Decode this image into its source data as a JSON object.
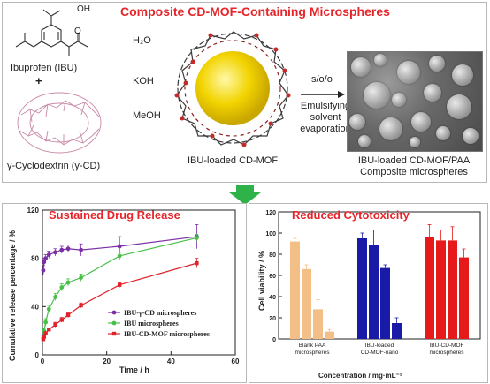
{
  "top": {
    "title": "Composite CD-MOF-Containing Microspheres",
    "ibuprofen_label": "Ibuprofen (IBU)",
    "plus": "+",
    "cyclodextrin_label": "γ-Cyclodextrin (γ-CD)",
    "cooh": "OH",
    "o_atom": "O",
    "reagents": [
      "H₂O",
      "KOH",
      "MeOH"
    ],
    "mof_label": "IBU-loaded CD-MOF",
    "process_top": "s/o/o",
    "process_lines": [
      "Emulsifying",
      "solvent",
      "evaporation"
    ],
    "product_lines": [
      "IBU-loaded CD-MOF/PAA",
      "Composite microspheres"
    ]
  },
  "release": {
    "title": "Sustained Drug Release",
    "ylabel": "Cumulative release percentage / %",
    "xlabel": "Time / h"
  },
  "cytotox": {
    "title": "Reduced Cytotoxicity",
    "ylabel": "Cell viability / %",
    "xlabel": "Concentration / mg·mL⁻¹"
  },
  "chart_data": [
    {
      "type": "line",
      "title": "Sustained Drug Release",
      "xlabel": "Time / h",
      "ylabel": "Cumulative release percentage / %",
      "xlim": [
        0,
        60
      ],
      "ylim": [
        0,
        120
      ],
      "xticks": [
        0,
        20,
        40,
        60
      ],
      "yticks": [
        0,
        40,
        80,
        120
      ],
      "legend_position": "lower-right",
      "series": [
        {
          "name": "IBU-γ-CD microspheres",
          "color": "#7b2fa6",
          "marker": "circle",
          "x": [
            0.25,
            0.5,
            1,
            2,
            4,
            6,
            8,
            12,
            24,
            48
          ],
          "y": [
            70,
            77,
            80,
            83,
            85,
            87,
            88,
            87,
            90,
            98
          ],
          "err": [
            4,
            3,
            3,
            3,
            3,
            3,
            3,
            5,
            8,
            10
          ]
        },
        {
          "name": "IBU microspheres",
          "color": "#48c048",
          "marker": "circle",
          "x": [
            0.25,
            0.5,
            1,
            2,
            4,
            6,
            8,
            12,
            24,
            48
          ],
          "y": [
            14,
            20,
            27,
            38,
            48,
            56,
            60,
            64,
            82,
            97
          ],
          "err": [
            2,
            2,
            3,
            3,
            3,
            3,
            3,
            3,
            3,
            3
          ]
        },
        {
          "name": "IBU-CD-MOF microspheres",
          "color": "#e0222a",
          "marker": "square",
          "x": [
            0.25,
            0.5,
            1,
            2,
            4,
            6,
            8,
            12,
            24,
            48
          ],
          "y": [
            13,
            15,
            18,
            21,
            25,
            29,
            33,
            41,
            58,
            76
          ],
          "err": [
            1,
            1,
            1,
            1,
            2,
            2,
            2,
            2,
            2,
            4
          ]
        }
      ]
    },
    {
      "type": "bar",
      "title": "Reduced Cytotoxicity",
      "xlabel": "Concentration / mg·mL⁻¹",
      "ylabel": "Cell viability / %",
      "ylim": [
        0,
        120
      ],
      "yticks": [
        0,
        20,
        40,
        60,
        80,
        100,
        120
      ],
      "groups": [
        {
          "name": "Blank PAA microspheres",
          "color": "#f3bf86",
          "values": [
            92,
            66,
            28,
            7
          ],
          "err": [
            3,
            4,
            9,
            2
          ]
        },
        {
          "name": "IBU-loaded CD-MOF-nano",
          "color": "#1a1aa8",
          "values": [
            95,
            89,
            67,
            15
          ],
          "err": [
            5,
            14,
            3,
            5
          ]
        },
        {
          "name": "IBU-CD-MOF microspheres",
          "color": "#e61a1a",
          "values": [
            96,
            93,
            93,
            77
          ],
          "err": [
            12,
            10,
            13,
            8
          ]
        }
      ]
    }
  ]
}
